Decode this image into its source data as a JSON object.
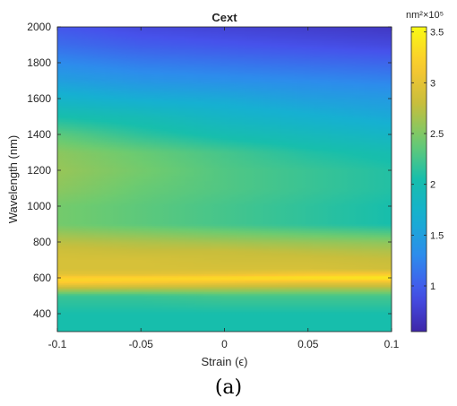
{
  "caption": "(a)",
  "chart_data": {
    "type": "heatmap",
    "title": "Cext",
    "xlabel": "Strain (ϵ)",
    "ylabel": "Wavelength (nm)",
    "xlim": [
      -0.1,
      0.1
    ],
    "ylim": [
      300,
      2000
    ],
    "x_ticks": [
      -0.1,
      -0.05,
      0,
      0.05,
      0.1
    ],
    "x_tick_labels": [
      "-0.1",
      "-0.05",
      "0",
      "0.05",
      "0.1"
    ],
    "y_ticks": [
      400,
      600,
      800,
      1000,
      1200,
      1400,
      1600,
      1800,
      2000
    ],
    "y_tick_labels": [
      "400",
      "600",
      "800",
      "1000",
      "1200",
      "1400",
      "1600",
      "1800",
      "2000"
    ],
    "colormap": "parula",
    "colorbar": {
      "label": "nm²×10⁵",
      "range": [
        0.55,
        3.55
      ],
      "ticks": [
        1,
        1.5,
        2,
        2.5,
        3,
        3.5
      ],
      "tick_labels": [
        "1",
        "1.5",
        "2",
        "2.5",
        "3",
        "3.5"
      ]
    },
    "strain": [
      -0.1,
      -0.05,
      0,
      0.05,
      0.1
    ],
    "wavelength": [
      300,
      400,
      500,
      560,
      580,
      600,
      620,
      650,
      700,
      750,
      800,
      900,
      1000,
      1100,
      1200,
      1300,
      1400,
      1500,
      1600,
      1700,
      1800,
      1900,
      2000
    ],
    "cext": [
      [
        2.05,
        2.05,
        2.05,
        2.05,
        2.05
      ],
      [
        2.05,
        2.05,
        2.05,
        2.05,
        2.05
      ],
      [
        2.2,
        2.2,
        2.25,
        2.25,
        2.25
      ],
      [
        3.0,
        2.95,
        2.9,
        2.85,
        2.85
      ],
      [
        3.25,
        3.2,
        3.15,
        3.1,
        3.1
      ],
      [
        3.25,
        3.3,
        3.35,
        3.4,
        3.45
      ],
      [
        3.0,
        3.0,
        3.05,
        3.15,
        3.2
      ],
      [
        2.9,
        2.9,
        2.9,
        2.9,
        2.85
      ],
      [
        2.9,
        2.9,
        2.85,
        2.85,
        2.8
      ],
      [
        2.85,
        2.8,
        2.8,
        2.75,
        2.7
      ],
      [
        2.75,
        2.7,
        2.65,
        2.6,
        2.55
      ],
      [
        2.45,
        2.35,
        2.25,
        2.15,
        2.05
      ],
      [
        2.45,
        2.35,
        2.25,
        2.15,
        2.05
      ],
      [
        2.55,
        2.4,
        2.3,
        2.2,
        2.1
      ],
      [
        2.6,
        2.45,
        2.3,
        2.2,
        2.1
      ],
      [
        2.55,
        2.4,
        2.25,
        2.1,
        2.0
      ],
      [
        2.35,
        2.15,
        2.0,
        1.9,
        1.8
      ],
      [
        2.05,
        1.95,
        1.8,
        1.7,
        1.6
      ],
      [
        1.75,
        1.65,
        1.6,
        1.5,
        1.45
      ],
      [
        1.5,
        1.4,
        1.35,
        1.3,
        1.25
      ],
      [
        1.3,
        1.2,
        1.15,
        1.1,
        1.05
      ],
      [
        1.1,
        1.0,
        0.95,
        0.9,
        0.85
      ],
      [
        0.95,
        0.85,
        0.8,
        0.75,
        0.7
      ]
    ]
  }
}
